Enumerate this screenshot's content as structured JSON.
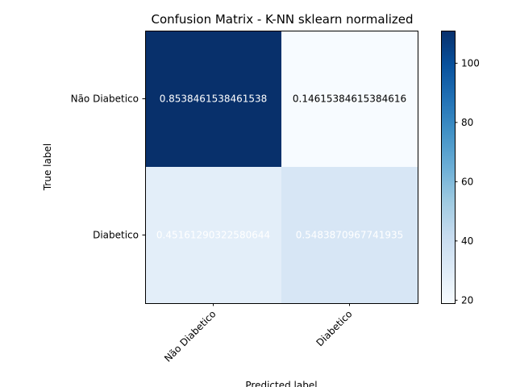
{
  "chart_data": {
    "type": "heatmap",
    "title": "Confusion Matrix - K-NN sklearn normalized",
    "xlabel": "Predicted label",
    "ylabel": "True label",
    "row_labels": [
      "Não Diabetico",
      "Diabetico"
    ],
    "col_labels": [
      "Não Diabetico",
      "Diabetico"
    ],
    "cell_text": [
      [
        "0.8538461538461538",
        "0.14615384615384616"
      ],
      [
        "0.45161290322580644",
        "0.5483870967741935"
      ]
    ],
    "color_values": [
      [
        111,
        19
      ],
      [
        28,
        34
      ]
    ],
    "colorbar": {
      "range": [
        19,
        111
      ],
      "ticks": [
        20,
        40,
        60,
        80,
        100
      ],
      "colormap": "Blues"
    },
    "colors": {
      "cmap_low": "#f7fbff",
      "cmap_high": "#08306b"
    }
  }
}
